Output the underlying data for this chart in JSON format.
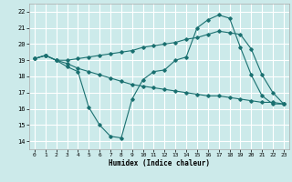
{
  "xlabel": "Humidex (Indice chaleur)",
  "xlim": [
    -0.5,
    23.5
  ],
  "ylim": [
    13.5,
    22.5
  ],
  "background_color": "#cceaea",
  "grid_color": "#ffffff",
  "line_color": "#1a7070",
  "line1_x": [
    0,
    1,
    2,
    3,
    4,
    5,
    6,
    7,
    8,
    9,
    10,
    11,
    12,
    13,
    14,
    15,
    16,
    17,
    18,
    19,
    20,
    21,
    22,
    23
  ],
  "line1_y": [
    19.1,
    19.3,
    19.0,
    18.6,
    18.3,
    16.1,
    15.0,
    14.3,
    14.2,
    16.6,
    17.8,
    18.3,
    18.4,
    19.0,
    19.2,
    21.0,
    21.5,
    21.8,
    21.6,
    19.8,
    18.1,
    16.8,
    16.3,
    16.3
  ],
  "line2_x": [
    0,
    1,
    2,
    3,
    4,
    5,
    6,
    7,
    8,
    9,
    10,
    11,
    12,
    13,
    14,
    15,
    16,
    17,
    18,
    19,
    20,
    21,
    22,
    23
  ],
  "line2_y": [
    19.1,
    19.3,
    19.0,
    19.0,
    19.1,
    19.2,
    19.3,
    19.4,
    19.5,
    19.6,
    19.8,
    19.9,
    20.0,
    20.1,
    20.3,
    20.4,
    20.6,
    20.8,
    20.7,
    20.6,
    19.7,
    18.1,
    17.0,
    16.3
  ],
  "line3_x": [
    0,
    1,
    2,
    3,
    4,
    5,
    6,
    7,
    8,
    9,
    10,
    11,
    12,
    13,
    14,
    15,
    16,
    17,
    18,
    19,
    20,
    21,
    22,
    23
  ],
  "line3_y": [
    19.1,
    19.3,
    19.0,
    18.8,
    18.5,
    18.3,
    18.1,
    17.9,
    17.7,
    17.5,
    17.4,
    17.3,
    17.2,
    17.1,
    17.0,
    16.9,
    16.8,
    16.8,
    16.7,
    16.6,
    16.5,
    16.4,
    16.4,
    16.3
  ],
  "yticks": [
    14,
    15,
    16,
    17,
    18,
    19,
    20,
    21,
    22
  ],
  "xticks": [
    0,
    1,
    2,
    3,
    4,
    5,
    6,
    7,
    8,
    9,
    10,
    11,
    12,
    13,
    14,
    15,
    16,
    17,
    18,
    19,
    20,
    21,
    22,
    23
  ]
}
